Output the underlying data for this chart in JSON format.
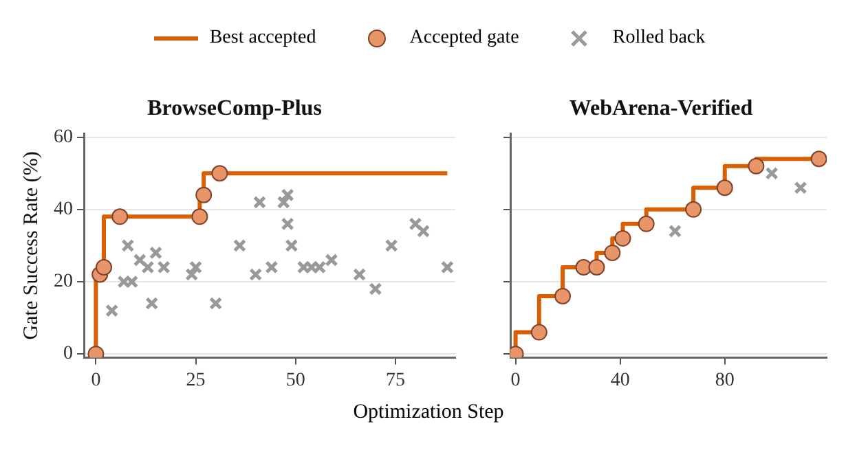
{
  "chart_data": [
    {
      "type": "scatter",
      "title": "BrowseComp-Plus",
      "xlabel": "Optimization Step",
      "ylabel": "Gate Success Rate (%)",
      "xlim": [
        -3,
        90
      ],
      "xticks": [
        0,
        25,
        50,
        75
      ],
      "ylim": [
        -1,
        61
      ],
      "yticks": [
        0,
        20,
        40,
        60
      ],
      "grid": "y",
      "legend": "top",
      "series": [
        {
          "name": "Best accepted",
          "type": "step",
          "color": "#d95f02",
          "marker": "none",
          "x": [
            0,
            1,
            2,
            6,
            26,
            27,
            31,
            88
          ],
          "values": [
            0,
            22,
            24,
            38,
            38,
            44,
            50,
            50
          ]
        },
        {
          "name": "Accepted gate",
          "color": "#e8956a",
          "marker": "circle",
          "x": [
            0,
            1,
            2,
            6,
            26,
            27,
            31
          ],
          "values": [
            0,
            22,
            24,
            38,
            38,
            44,
            50
          ]
        },
        {
          "name": "Rolled back",
          "color": "#999999",
          "marker": "cross",
          "x": [
            4,
            8,
            7,
            9,
            11,
            13,
            15,
            14,
            17,
            24,
            25,
            30,
            36,
            40,
            41,
            44,
            47,
            48,
            48,
            49,
            52,
            54,
            56,
            59,
            66,
            70,
            74,
            80,
            82,
            88
          ],
          "values": [
            12,
            30,
            20,
            20,
            26,
            24,
            28,
            14,
            24,
            22,
            24,
            14,
            30,
            22,
            42,
            24,
            42,
            44,
            36,
            30,
            24,
            24,
            24,
            26,
            22,
            18,
            30,
            36,
            34,
            24
          ]
        }
      ]
    },
    {
      "type": "scatter",
      "title": "WebArena-Verified",
      "xlim": [
        -2,
        119
      ],
      "xticks": [
        0,
        40,
        80
      ],
      "ylim": [
        -1,
        61
      ],
      "yticks": [
        0,
        20,
        40,
        60
      ],
      "grid": "y",
      "tick_labels": "x",
      "series": [
        {
          "type": "step",
          "color": "#d95f02",
          "marker": "none",
          "x": [
            0,
            9,
            18,
            26,
            31,
            37,
            41,
            50,
            68,
            80,
            92,
            116
          ],
          "values": [
            0,
            6,
            16,
            24,
            24,
            28,
            32,
            36,
            40,
            46,
            52,
            54
          ]
        },
        {
          "color": "#e8956a",
          "marker": "circle",
          "x": [
            0,
            9,
            18,
            26,
            31,
            37,
            41,
            50,
            68,
            80,
            92,
            116
          ],
          "values": [
            0,
            6,
            16,
            24,
            24,
            28,
            32,
            36,
            40,
            46,
            52,
            54
          ]
        },
        {
          "color": "#999999",
          "marker": "cross",
          "x": [
            61,
            98,
            109
          ],
          "values": [
            34,
            50,
            46
          ]
        }
      ]
    }
  ]
}
